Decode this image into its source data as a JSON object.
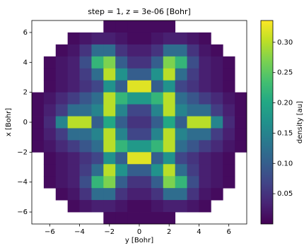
{
  "chart_data": {
    "type": "heatmap",
    "title": "step = 1, z = 3e-06 [Bohr]",
    "xlabel": "y [Bohr]",
    "ylabel": "x [Bohr]",
    "colorbar_label": "density [au]",
    "colormap": "viridis",
    "x": [
      -6.8,
      -6.0,
      -5.2,
      -4.4,
      -3.6,
      -2.8,
      -2.0,
      -1.2,
      -0.4,
      0.4,
      1.2,
      2.0,
      2.8,
      3.6,
      4.4,
      5.2,
      6.0,
      6.8
    ],
    "y": [
      6.4,
      5.6,
      4.8,
      4.0,
      3.2,
      2.4,
      1.6,
      0.8,
      0,
      -0.8,
      -1.6,
      -2.4,
      -3.2,
      -4.0,
      -4.8,
      -5.6,
      -6.4
    ],
    "values": [
      [
        null,
        null,
        null,
        null,
        null,
        null,
        0.01,
        0.01,
        0.01,
        0.01,
        0.01,
        0.01,
        null,
        null,
        null,
        null,
        null,
        null
      ],
      [
        null,
        null,
        null,
        0.01,
        0.02,
        0.03,
        0.03,
        0.02,
        0.01,
        0.01,
        0.02,
        0.03,
        0.03,
        0.02,
        0.01,
        null,
        null,
        null
      ],
      [
        null,
        null,
        0.01,
        0.02,
        0.05,
        0.12,
        0.12,
        0.05,
        0.03,
        0.03,
        0.05,
        0.12,
        0.12,
        0.05,
        0.02,
        0.01,
        null,
        null
      ],
      [
        null,
        0.01,
        0.02,
        0.03,
        0.08,
        0.22,
        0.27,
        0.1,
        0.05,
        0.05,
        0.1,
        0.27,
        0.22,
        0.08,
        0.03,
        0.02,
        0.01,
        null
      ],
      [
        null,
        0.01,
        0.02,
        0.03,
        0.06,
        0.12,
        0.3,
        0.17,
        0.1,
        0.1,
        0.17,
        0.3,
        0.12,
        0.06,
        0.03,
        0.02,
        0.01,
        null
      ],
      [
        null,
        0.01,
        0.02,
        0.03,
        0.05,
        0.07,
        0.17,
        0.1,
        0.32,
        0.32,
        0.1,
        0.17,
        0.07,
        0.05,
        0.03,
        0.02,
        0.01,
        null
      ],
      [
        0.01,
        0.02,
        0.04,
        0.06,
        0.09,
        0.12,
        0.3,
        0.22,
        0.18,
        0.18,
        0.22,
        0.3,
        0.12,
        0.09,
        0.06,
        0.04,
        0.02,
        0.01
      ],
      [
        0.01,
        0.03,
        0.06,
        0.12,
        0.12,
        0.15,
        0.3,
        0.15,
        0.07,
        0.07,
        0.15,
        0.3,
        0.15,
        0.12,
        0.12,
        0.06,
        0.03,
        0.01
      ],
      [
        0.01,
        0.04,
        0.15,
        0.3,
        0.3,
        0.1,
        0.2,
        0.1,
        0.05,
        0.05,
        0.1,
        0.2,
        0.1,
        0.3,
        0.3,
        0.15,
        0.04,
        0.01
      ],
      [
        0.01,
        0.03,
        0.06,
        0.12,
        0.12,
        0.15,
        0.3,
        0.15,
        0.07,
        0.07,
        0.15,
        0.3,
        0.15,
        0.12,
        0.12,
        0.06,
        0.03,
        0.01
      ],
      [
        0.01,
        0.02,
        0.04,
        0.06,
        0.09,
        0.12,
        0.3,
        0.22,
        0.18,
        0.18,
        0.22,
        0.3,
        0.12,
        0.09,
        0.06,
        0.04,
        0.02,
        0.01
      ],
      [
        null,
        0.01,
        0.02,
        0.03,
        0.05,
        0.07,
        0.17,
        0.1,
        0.32,
        0.32,
        0.1,
        0.17,
        0.07,
        0.05,
        0.03,
        0.02,
        0.01,
        null
      ],
      [
        null,
        0.01,
        0.02,
        0.03,
        0.06,
        0.12,
        0.3,
        0.17,
        0.1,
        0.1,
        0.17,
        0.3,
        0.12,
        0.06,
        0.03,
        0.02,
        0.01,
        null
      ],
      [
        null,
        0.01,
        0.02,
        0.03,
        0.08,
        0.22,
        0.27,
        0.1,
        0.05,
        0.05,
        0.1,
        0.27,
        0.22,
        0.08,
        0.03,
        0.02,
        0.01,
        null
      ],
      [
        null,
        null,
        0.01,
        0.02,
        0.05,
        0.12,
        0.12,
        0.05,
        0.03,
        0.03,
        0.05,
        0.12,
        0.12,
        0.05,
        0.02,
        0.01,
        null,
        null
      ],
      [
        null,
        null,
        null,
        0.01,
        0.02,
        0.03,
        0.03,
        0.02,
        0.01,
        0.01,
        0.02,
        0.03,
        0.03,
        0.02,
        0.01,
        null,
        null,
        null
      ],
      [
        null,
        null,
        null,
        null,
        null,
        null,
        0.01,
        0.01,
        0.01,
        0.01,
        0.01,
        0.01,
        null,
        null,
        null,
        null,
        null,
        null
      ]
    ],
    "xlim": [
      -7.2,
      7.2
    ],
    "ylim": [
      -6.8,
      6.8
    ],
    "xticks": [
      {
        "value": -6,
        "label": "−6"
      },
      {
        "value": -4,
        "label": "−4"
      },
      {
        "value": -2,
        "label": "−2"
      },
      0,
      2,
      4,
      6
    ],
    "yticks": [
      {
        "value": -6,
        "label": "−6"
      },
      {
        "value": -4,
        "label": "−4"
      },
      {
        "value": -2,
        "label": "−2"
      },
      0,
      2,
      4,
      6
    ],
    "clim": [
      0,
      0.336
    ],
    "cticks": [
      0.05,
      {
        "value": 0.1,
        "label": "0.10"
      },
      0.15,
      {
        "value": 0.2,
        "label": "0.20"
      },
      0.25,
      {
        "value": 0.3,
        "label": "0.30"
      }
    ]
  }
}
